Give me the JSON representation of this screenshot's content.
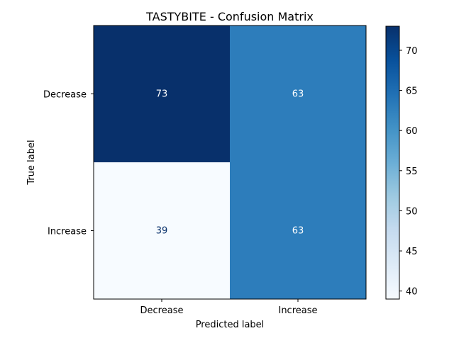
{
  "chart_data": {
    "type": "heatmap",
    "title": "TASTYBITE - Confusion Matrix",
    "xlabel": "Predicted label",
    "ylabel": "True label",
    "x_categories": [
      "Decrease",
      "Increase"
    ],
    "y_categories": [
      "Decrease",
      "Increase"
    ],
    "values": [
      [
        73,
        63
      ],
      [
        39,
        63
      ]
    ],
    "colormap": "Blues",
    "color_range": [
      39,
      73
    ],
    "colorbar_ticks": [
      40,
      45,
      50,
      55,
      60,
      65,
      70
    ],
    "grid": false
  }
}
